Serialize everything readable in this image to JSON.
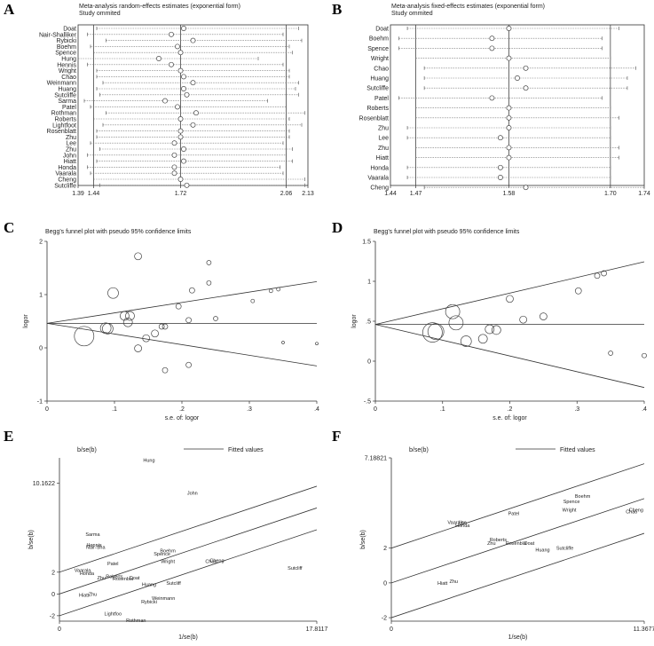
{
  "panel_labels": [
    "A",
    "B",
    "C",
    "D",
    "E",
    "F"
  ],
  "chart_data": [
    {
      "type": "forest",
      "panel": "A",
      "title": "Meta-analysis random-effects estimates (exponential form)",
      "subtitle": "Study ommited",
      "xlim": [
        1.39,
        2.13
      ],
      "ticks": [
        1.39,
        1.44,
        1.72,
        2.06,
        2.13
      ],
      "tick_labels": [
        "1.39",
        "1.44",
        "1.72",
        "2.06",
        "2.13"
      ],
      "vlines": [
        1.44,
        1.72,
        2.06
      ],
      "rows": [
        {
          "study": "Doat",
          "est": 1.73,
          "lo": 1.45,
          "hi": 2.1
        },
        {
          "study": "Nair-Shalliker",
          "est": 1.69,
          "lo": 1.42,
          "hi": 2.05
        },
        {
          "study": "Rybicki",
          "est": 1.76,
          "lo": 1.48,
          "hi": 2.11
        },
        {
          "study": "Boehm",
          "est": 1.71,
          "lo": 1.43,
          "hi": 2.07
        },
        {
          "study": "Spence",
          "est": 1.72,
          "lo": 1.44,
          "hi": 2.08
        },
        {
          "study": "Hung",
          "est": 1.65,
          "lo": 1.39,
          "hi": 1.97
        },
        {
          "study": "Hennis",
          "est": 1.69,
          "lo": 1.42,
          "hi": 2.05
        },
        {
          "study": "Wright",
          "est": 1.72,
          "lo": 1.45,
          "hi": 2.07
        },
        {
          "study": "Chao",
          "est": 1.73,
          "lo": 1.45,
          "hi": 2.07
        },
        {
          "study": "Weinmann",
          "est": 1.76,
          "lo": 1.47,
          "hi": 2.1
        },
        {
          "study": "Huang",
          "est": 1.73,
          "lo": 1.45,
          "hi": 2.09
        },
        {
          "study": "Sutcliffe",
          "est": 1.74,
          "lo": 1.46,
          "hi": 2.1
        },
        {
          "study": "Sarma",
          "est": 1.67,
          "lo": 1.41,
          "hi": 2.0
        },
        {
          "study": "Patel",
          "est": 1.71,
          "lo": 1.43,
          "hi": 2.06
        },
        {
          "study": "Rothman",
          "est": 1.77,
          "lo": 1.48,
          "hi": 2.12
        },
        {
          "study": "Roberts",
          "est": 1.72,
          "lo": 1.44,
          "hi": 2.07
        },
        {
          "study": "Lightfoot",
          "est": 1.76,
          "lo": 1.47,
          "hi": 2.11
        },
        {
          "study": "Rosenblatt",
          "est": 1.72,
          "lo": 1.45,
          "hi": 2.07
        },
        {
          "study": "Zhu",
          "est": 1.72,
          "lo": 1.45,
          "hi": 2.07
        },
        {
          "study": "Lee",
          "est": 1.7,
          "lo": 1.43,
          "hi": 2.05
        },
        {
          "study": "Zhu",
          "est": 1.73,
          "lo": 1.46,
          "hi": 2.08
        },
        {
          "study": "John",
          "est": 1.7,
          "lo": 1.42,
          "hi": 2.06
        },
        {
          "study": "Hiatt",
          "est": 1.73,
          "lo": 1.45,
          "hi": 2.08
        },
        {
          "study": "Honda",
          "est": 1.7,
          "lo": 1.42,
          "hi": 2.04
        },
        {
          "study": "Vaarala",
          "est": 1.7,
          "lo": 1.43,
          "hi": 2.05
        },
        {
          "study": "Cheng",
          "est": 1.72,
          "lo": 1.44,
          "hi": 2.12
        },
        {
          "study": "Sutcliffe",
          "est": 1.74,
          "lo": 1.46,
          "hi": 2.12
        }
      ]
    },
    {
      "type": "forest",
      "panel": "B",
      "title": "Meta-analysis fixed-effects estimates (exponential form)",
      "subtitle": "Study ommited",
      "xlim": [
        1.44,
        1.74
      ],
      "ticks": [
        1.44,
        1.47,
        1.58,
        1.7,
        1.74
      ],
      "tick_labels": [
        "1.44",
        "1.47",
        "1.58",
        "1.70",
        "1.74"
      ],
      "vlines": [
        1.47,
        1.58,
        1.7
      ],
      "rows": [
        {
          "study": "Doat",
          "est": 1.58,
          "lo": 1.46,
          "hi": 1.71
        },
        {
          "study": "Boehm",
          "est": 1.56,
          "lo": 1.45,
          "hi": 1.69
        },
        {
          "study": "Spence",
          "est": 1.56,
          "lo": 1.45,
          "hi": 1.69
        },
        {
          "study": "Wright",
          "est": 1.58,
          "lo": 1.47,
          "hi": 1.7
        },
        {
          "study": "Chao",
          "est": 1.6,
          "lo": 1.48,
          "hi": 1.73
        },
        {
          "study": "Huang",
          "est": 1.59,
          "lo": 1.48,
          "hi": 1.72
        },
        {
          "study": "Sutcliffe",
          "est": 1.6,
          "lo": 1.48,
          "hi": 1.72
        },
        {
          "study": "Patel",
          "est": 1.56,
          "lo": 1.45,
          "hi": 1.69
        },
        {
          "study": "Roberts",
          "est": 1.58,
          "lo": 1.47,
          "hi": 1.7
        },
        {
          "study": "Rosenblatt",
          "est": 1.58,
          "lo": 1.47,
          "hi": 1.71
        },
        {
          "study": "Zhu",
          "est": 1.58,
          "lo": 1.46,
          "hi": 1.7
        },
        {
          "study": "Lee",
          "est": 1.57,
          "lo": 1.46,
          "hi": 1.7
        },
        {
          "study": "Zhu",
          "est": 1.58,
          "lo": 1.47,
          "hi": 1.71
        },
        {
          "study": "Hiatt",
          "est": 1.58,
          "lo": 1.47,
          "hi": 1.71
        },
        {
          "study": "Honda",
          "est": 1.57,
          "lo": 1.46,
          "hi": 1.7
        },
        {
          "study": "Vaarala",
          "est": 1.57,
          "lo": 1.46,
          "hi": 1.7
        },
        {
          "study": "Cheng",
          "est": 1.6,
          "lo": 1.48,
          "hi": 1.74
        }
      ]
    },
    {
      "type": "scatter",
      "panel": "C",
      "title": "Begg's funnel plot with pseudo 95% confidence limits",
      "xlabel": "s.e. of: logor",
      "ylabel": "logor",
      "xlim": [
        0,
        0.4
      ],
      "ylim": [
        -1,
        2
      ],
      "xticks": [
        0,
        0.1,
        0.2,
        0.3,
        0.4
      ],
      "xtick_labels": [
        "0",
        ".1",
        ".2",
        ".3",
        ".4"
      ],
      "yticks": [
        -1,
        0,
        1,
        2
      ],
      "ytick_labels": [
        "-1",
        "0",
        "1",
        "2"
      ],
      "pooled": 0.46,
      "points": [
        {
          "x": 0.055,
          "y": 0.22,
          "r": 11
        },
        {
          "x": 0.087,
          "y": 0.37,
          "r": 6
        },
        {
          "x": 0.09,
          "y": 0.36,
          "r": 6
        },
        {
          "x": 0.098,
          "y": 1.03,
          "r": 6
        },
        {
          "x": 0.115,
          "y": 0.6,
          "r": 5
        },
        {
          "x": 0.123,
          "y": 0.6,
          "r": 5
        },
        {
          "x": 0.12,
          "y": 0.48,
          "r": 5
        },
        {
          "x": 0.135,
          "y": 1.72,
          "r": 4
        },
        {
          "x": 0.135,
          "y": -0.01,
          "r": 4
        },
        {
          "x": 0.147,
          "y": 0.18,
          "r": 4
        },
        {
          "x": 0.16,
          "y": 0.27,
          "r": 4
        },
        {
          "x": 0.17,
          "y": 0.4,
          "r": 3
        },
        {
          "x": 0.175,
          "y": 0.4,
          "r": 3
        },
        {
          "x": 0.175,
          "y": -0.42,
          "r": 3
        },
        {
          "x": 0.195,
          "y": 0.78,
          "r": 3
        },
        {
          "x": 0.21,
          "y": 0.52,
          "r": 3
        },
        {
          "x": 0.21,
          "y": -0.32,
          "r": 3
        },
        {
          "x": 0.215,
          "y": 1.08,
          "r": 3
        },
        {
          "x": 0.24,
          "y": 1.6,
          "r": 2.5
        },
        {
          "x": 0.24,
          "y": 1.22,
          "r": 2.5
        },
        {
          "x": 0.25,
          "y": 0.55,
          "r": 2.5
        },
        {
          "x": 0.305,
          "y": 0.88,
          "r": 2
        },
        {
          "x": 0.332,
          "y": 1.07,
          "r": 2
        },
        {
          "x": 0.343,
          "y": 1.1,
          "r": 2
        },
        {
          "x": 0.35,
          "y": 0.1,
          "r": 1.5
        },
        {
          "x": 0.4,
          "y": 0.08,
          "r": 1.5
        }
      ]
    },
    {
      "type": "scatter",
      "panel": "D",
      "title": "Begg's funnel plot with pseudo 95% confidence limits",
      "xlabel": "s.e. of: logor",
      "ylabel": "logor",
      "xlim": [
        0,
        0.4
      ],
      "ylim": [
        -0.5,
        1.5
      ],
      "xticks": [
        0,
        0.1,
        0.2,
        0.3,
        0.4
      ],
      "xtick_labels": [
        "0",
        ".1",
        ".2",
        ".3",
        ".4"
      ],
      "yticks": [
        -0.5,
        0,
        0.5,
        1,
        1.5
      ],
      "ytick_labels": [
        "-.5",
        "0",
        ".5",
        "1",
        "1.5"
      ],
      "pooled": 0.46,
      "points": [
        {
          "x": 0.085,
          "y": 0.36,
          "r": 11
        },
        {
          "x": 0.09,
          "y": 0.37,
          "r": 9
        },
        {
          "x": 0.115,
          "y": 0.62,
          "r": 8
        },
        {
          "x": 0.12,
          "y": 0.48,
          "r": 8
        },
        {
          "x": 0.135,
          "y": 0.25,
          "r": 6
        },
        {
          "x": 0.16,
          "y": 0.28,
          "r": 5
        },
        {
          "x": 0.17,
          "y": 0.4,
          "r": 5
        },
        {
          "x": 0.18,
          "y": 0.39,
          "r": 5
        },
        {
          "x": 0.2,
          "y": 0.78,
          "r": 4
        },
        {
          "x": 0.22,
          "y": 0.52,
          "r": 4
        },
        {
          "x": 0.25,
          "y": 0.56,
          "r": 4
        },
        {
          "x": 0.302,
          "y": 0.88,
          "r": 3.5
        },
        {
          "x": 0.33,
          "y": 1.07,
          "r": 3
        },
        {
          "x": 0.34,
          "y": 1.1,
          "r": 3
        },
        {
          "x": 0.35,
          "y": 0.1,
          "r": 2.5
        },
        {
          "x": 0.4,
          "y": 0.07,
          "r": 2.5
        }
      ]
    },
    {
      "type": "scatter",
      "panel": "E",
      "ylabel_top": "b/se(b)",
      "legend": "Fitted values",
      "xlabel": "1/se(b)",
      "ylabel": "b/se(b)",
      "xlim": [
        0,
        17.8117
      ],
      "ylim": [
        -2.5,
        12.5
      ],
      "xticks": [
        0,
        17.8117
      ],
      "xtick_labels": [
        "0",
        "17.8117"
      ],
      "yticks": [
        -2,
        0,
        2,
        10.1622
      ],
      "ytick_labels": [
        "-2",
        "0",
        "2",
        "10.1622"
      ],
      "lines": [
        {
          "x0": 0,
          "y0": 2.0,
          "x1": 17.8117,
          "y1": 9.9
        },
        {
          "x0": 0,
          "y0": 0.0,
          "x1": 17.8117,
          "y1": 7.9
        },
        {
          "x0": 0,
          "y0": -2.0,
          "x1": 17.8117,
          "y1": 5.9
        }
      ],
      "points": [
        {
          "label": "Hung",
          "x": 6.2,
          "y": 12.3
        },
        {
          "label": "John",
          "x": 9.2,
          "y": 9.3
        },
        {
          "label": "Sarma",
          "x": 2.3,
          "y": 5.5
        },
        {
          "label": "Hennis",
          "x": 2.4,
          "y": 4.5
        },
        {
          "label": "Nair-Sha",
          "x": 2.5,
          "y": 4.3
        },
        {
          "label": "Boehm",
          "x": 7.5,
          "y": 4.0
        },
        {
          "label": "Spence",
          "x": 7.1,
          "y": 3.7
        },
        {
          "label": "Wright",
          "x": 7.5,
          "y": 3.0
        },
        {
          "label": "Patel",
          "x": 3.7,
          "y": 2.8
        },
        {
          "label": "Chao",
          "x": 10.5,
          "y": 3.0
        },
        {
          "label": "Cheng",
          "x": 10.9,
          "y": 3.1
        },
        {
          "label": "Sutcliff",
          "x": 16.3,
          "y": 2.4
        },
        {
          "label": "Vaarala",
          "x": 1.6,
          "y": 2.2
        },
        {
          "label": "Honda",
          "x": 1.9,
          "y": 1.9
        },
        {
          "label": "Zhu",
          "x": 2.9,
          "y": 1.5
        },
        {
          "label": "Roberts",
          "x": 3.8,
          "y": 1.6
        },
        {
          "label": "Rosenbla",
          "x": 4.4,
          "y": 1.4
        },
        {
          "label": "Doat",
          "x": 5.2,
          "y": 1.5
        },
        {
          "label": "Huang",
          "x": 6.2,
          "y": 0.9
        },
        {
          "label": "Sutcliff",
          "x": 7.9,
          "y": 1.0
        },
        {
          "label": "Hiatt",
          "x": 1.7,
          "y": -0.1
        },
        {
          "label": "Zhu",
          "x": 2.3,
          "y": 0.0
        },
        {
          "label": "Weinmann",
          "x": 7.2,
          "y": -0.4
        },
        {
          "label": "Rybicki",
          "x": 6.2,
          "y": -0.7
        },
        {
          "label": "Lightfoo",
          "x": 3.7,
          "y": -1.8
        },
        {
          "label": "Rothman",
          "x": 5.3,
          "y": -2.4
        }
      ]
    },
    {
      "type": "scatter",
      "panel": "F",
      "ylabel_top": "b/se(b)",
      "legend": "Fitted values",
      "xlabel": "1/se(b)",
      "ylabel": "b/se(b)",
      "xlim": [
        0,
        11.3677
      ],
      "ylim": [
        -2.2,
        7.18821
      ],
      "xticks": [
        0,
        11.3677
      ],
      "xtick_labels": [
        "0",
        "11.3677"
      ],
      "yticks": [
        -2,
        0,
        2,
        7.18821
      ],
      "ytick_labels": [
        "-2",
        "0",
        "2",
        "7.18821"
      ],
      "lines": [
        {
          "x0": 0,
          "y0": 2.0,
          "x1": 11.3677,
          "y1": 6.85
        },
        {
          "x0": 0,
          "y0": 0.0,
          "x1": 11.3677,
          "y1": 4.85
        },
        {
          "x0": 0,
          "y0": -2.0,
          "x1": 11.3677,
          "y1": 2.85
        }
      ],
      "points": [
        {
          "label": "Boehm",
          "x": 8.6,
          "y": 5.0
        },
        {
          "label": "Spence",
          "x": 8.1,
          "y": 4.7
        },
        {
          "label": "Wright",
          "x": 8.0,
          "y": 4.2
        },
        {
          "label": "Cheng",
          "x": 11.0,
          "y": 4.2
        },
        {
          "label": "Chao",
          "x": 10.8,
          "y": 4.1
        },
        {
          "label": "Patel",
          "x": 5.5,
          "y": 4.0
        },
        {
          "label": "Vaarala",
          "x": 2.9,
          "y": 3.5
        },
        {
          "label": "Lee",
          "x": 3.2,
          "y": 3.5
        },
        {
          "label": "Honda",
          "x": 3.2,
          "y": 3.3
        },
        {
          "label": "Roberts",
          "x": 4.8,
          "y": 2.5
        },
        {
          "label": "Zhu",
          "x": 4.5,
          "y": 2.3
        },
        {
          "label": "Rosenbla",
          "x": 5.6,
          "y": 2.3
        },
        {
          "label": "Doat",
          "x": 6.2,
          "y": 2.3
        },
        {
          "label": "Huang",
          "x": 6.8,
          "y": 1.9
        },
        {
          "label": "Sutcliffe",
          "x": 7.8,
          "y": 2.0
        },
        {
          "label": "Hiatt",
          "x": 2.3,
          "y": 0.0
        },
        {
          "label": "Zhu",
          "x": 2.8,
          "y": 0.1
        }
      ]
    }
  ]
}
